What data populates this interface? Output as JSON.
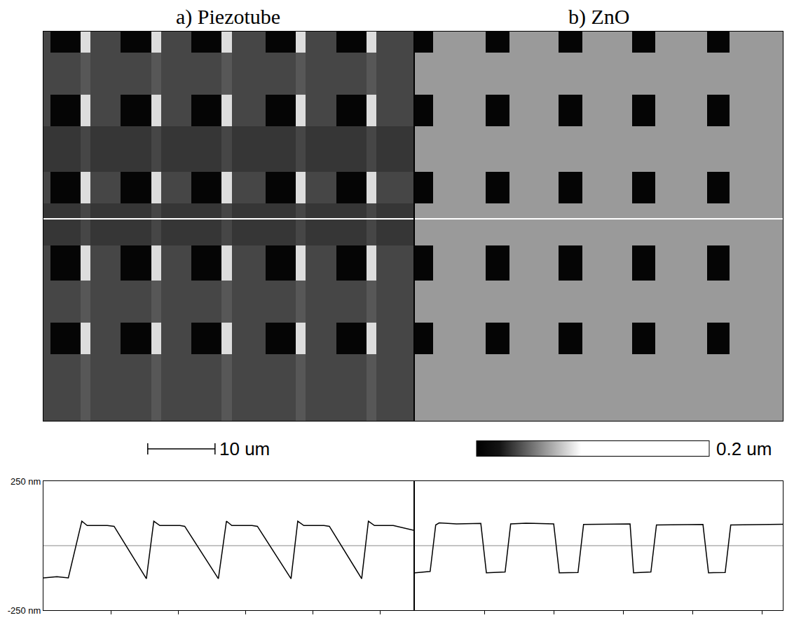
{
  "chart_data": [
    {
      "type": "heatmap",
      "title": "a) Piezotube",
      "x": [
        0,
        1,
        5.5,
        7,
        11.5,
        16,
        17.5,
        22,
        26.5,
        28,
        33,
        37.5,
        39,
        43.5,
        48,
        49.5,
        55
      ],
      "y": [
        0,
        3,
        9,
        13.5,
        20,
        24.5,
        30.5,
        35.5,
        41.5,
        46,
        55.5
      ],
      "z": [
        [
          0.035,
          0.005,
          0.08,
          0.035,
          0.005,
          0.08,
          0.035,
          0.005,
          0.08,
          0.035,
          0.005,
          0.08,
          0.035,
          0.005,
          0.08,
          0.035
        ],
        [
          0.035,
          0.035,
          0.04,
          0.035,
          0.035,
          0.04,
          0.035,
          0.035,
          0.04,
          0.035,
          0.035,
          0.04,
          0.035,
          0.035,
          0.04,
          0.035
        ],
        [
          0.035,
          0.005,
          0.08,
          0.035,
          0.005,
          0.08,
          0.035,
          0.005,
          0.08,
          0.035,
          0.005,
          0.08,
          0.035,
          0.005,
          0.08,
          0.035
        ],
        [
          0.03,
          0.03,
          0.035,
          0.03,
          0.03,
          0.035,
          0.03,
          0.03,
          0.035,
          0.03,
          0.03,
          0.035,
          0.03,
          0.03,
          0.035,
          0.03
        ],
        [
          0.035,
          0.005,
          0.08,
          0.035,
          0.005,
          0.08,
          0.035,
          0.005,
          0.08,
          0.035,
          0.005,
          0.08,
          0.035,
          0.005,
          0.08,
          0.035
        ],
        [
          0.03,
          0.03,
          0.035,
          0.03,
          0.03,
          0.035,
          0.03,
          0.03,
          0.035,
          0.03,
          0.03,
          0.035,
          0.03,
          0.03,
          0.035,
          0.03
        ],
        [
          0.035,
          0.005,
          0.08,
          0.035,
          0.005,
          0.08,
          0.035,
          0.005,
          0.08,
          0.035,
          0.005,
          0.08,
          0.035,
          0.005,
          0.08,
          0.035
        ],
        [
          0.035,
          0.035,
          0.04,
          0.035,
          0.035,
          0.04,
          0.035,
          0.035,
          0.04,
          0.035,
          0.035,
          0.04,
          0.035,
          0.035,
          0.04,
          0.035
        ],
        [
          0.035,
          0.005,
          0.08,
          0.035,
          0.005,
          0.08,
          0.035,
          0.005,
          0.08,
          0.035,
          0.005,
          0.08,
          0.035,
          0.005,
          0.08,
          0.035
        ],
        [
          0.035,
          0.035,
          0.04,
          0.035,
          0.035,
          0.04,
          0.035,
          0.035,
          0.04,
          0.035,
          0.035,
          0.04,
          0.035,
          0.035,
          0.04,
          0.035
        ]
      ],
      "xlim": [
        0,
        55
      ],
      "ylim": [
        55.5,
        0
      ],
      "profile_y": 26.7,
      "tick_labels": false,
      "scale_bar": {
        "length": 10,
        "label": "10 um"
      }
    },
    {
      "type": "heatmap",
      "title": "b) ZnO",
      "x": [
        0,
        2.6,
        10.2,
        13.6,
        20.7,
        24.1,
        31.3,
        34.6,
        42.1,
        45.3,
        53
      ],
      "y": [
        0,
        3,
        9,
        13.5,
        20,
        24.5,
        30.5,
        35.5,
        41.5,
        46,
        55.5
      ],
      "z": [
        [
          0.005,
          0.06,
          0.005,
          0.06,
          0.005,
          0.06,
          0.005,
          0.06,
          0.005,
          0.06
        ],
        [
          0.06,
          0.06,
          0.06,
          0.06,
          0.06,
          0.06,
          0.06,
          0.06,
          0.06,
          0.06
        ],
        [
          0.005,
          0.06,
          0.005,
          0.06,
          0.005,
          0.06,
          0.005,
          0.06,
          0.005,
          0.06
        ],
        [
          0.06,
          0.06,
          0.06,
          0.06,
          0.06,
          0.06,
          0.06,
          0.06,
          0.06,
          0.06
        ],
        [
          0.005,
          0.06,
          0.005,
          0.06,
          0.005,
          0.06,
          0.005,
          0.06,
          0.005,
          0.06
        ],
        [
          0.06,
          0.06,
          0.06,
          0.06,
          0.06,
          0.06,
          0.06,
          0.06,
          0.06,
          0.06
        ],
        [
          0.005,
          0.06,
          0.005,
          0.06,
          0.005,
          0.06,
          0.005,
          0.06,
          0.005,
          0.06
        ],
        [
          0.06,
          0.06,
          0.06,
          0.06,
          0.06,
          0.06,
          0.06,
          0.06,
          0.06,
          0.06
        ],
        [
          0.005,
          0.06,
          0.005,
          0.06,
          0.005,
          0.06,
          0.005,
          0.06,
          0.005,
          0.06
        ],
        [
          0.06,
          0.06,
          0.06,
          0.06,
          0.06,
          0.06,
          0.06,
          0.06,
          0.06,
          0.06
        ]
      ],
      "xlim": [
        0,
        53
      ],
      "ylim": [
        55.5,
        0
      ],
      "profile_y": 26.7,
      "tick_labels": false,
      "colorbar": {
        "range": [
          0,
          0.2
        ],
        "label": "0.2 um"
      }
    },
    {
      "type": "line",
      "color": "#000000",
      "x": [
        0,
        2,
        3.7,
        5.7,
        6.5,
        9.5,
        10.5,
        15.3,
        16.4,
        17.3,
        20.3,
        21,
        26,
        27.2,
        28,
        31,
        31.8,
        36.8,
        37.8,
        38.7,
        41.7,
        42.5,
        47.3,
        48.3,
        49.2,
        52,
        55
      ],
      "values": [
        -125,
        -120,
        -125,
        95,
        78,
        78,
        75,
        -128,
        95,
        78,
        78,
        75,
        -128,
        95,
        78,
        78,
        75,
        -128,
        95,
        78,
        78,
        75,
        -128,
        95,
        78,
        78,
        60
      ],
      "xlim": [
        0,
        55
      ],
      "ylim": [
        -250,
        250
      ],
      "xticks": [
        10,
        20,
        30,
        40,
        50
      ],
      "yticks": [
        {
          "value": 250,
          "label": "250 nm"
        },
        {
          "value": -250,
          "label": "-250 nm"
        }
      ],
      "reference_line": 0,
      "tick_labels": "y",
      "grid": false
    },
    {
      "type": "line",
      "color": "#000000",
      "x": [
        0,
        2.2,
        3.0,
        3.5,
        6.0,
        9.5,
        10.3,
        13.0,
        13.8,
        16,
        20,
        20.8,
        23.5,
        24.3,
        31,
        31.5,
        34,
        34.8,
        41.5,
        42.3,
        44.7,
        45.5,
        53
      ],
      "values": [
        -105,
        -100,
        80,
        88,
        84,
        86,
        -105,
        -102,
        84,
        87,
        84,
        -105,
        -104,
        82,
        84,
        -105,
        -102,
        80,
        82,
        -105,
        -104,
        80,
        83
      ],
      "xlim": [
        0,
        53
      ],
      "ylim": [
        -250,
        250
      ],
      "xticks": [
        10,
        20,
        30,
        40,
        50
      ],
      "reference_line": 0,
      "tick_labels": false,
      "grid": false
    }
  ]
}
